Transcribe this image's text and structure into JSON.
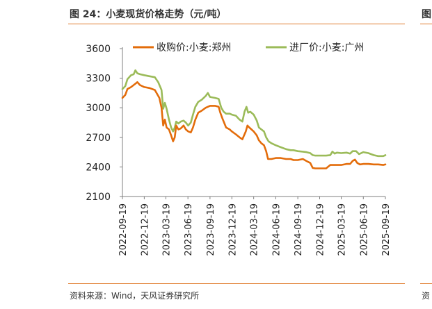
{
  "figure": {
    "title": "图 24：小麦现货价格走势（元/吨）",
    "source": "资料来源：Wind，天风证券研究所",
    "cut_title_fragment": "图",
    "cut_source_fragment": "资"
  },
  "colors": {
    "accent": "#e07a2a",
    "series1": "#e36c0a",
    "series2": "#9bbb59"
  },
  "chart_data": {
    "type": "line",
    "title": "小麦现货价格走势（元/吨）",
    "xlabel": "",
    "ylabel": "",
    "ylim": [
      2100,
      3600
    ],
    "yticks": [
      2100,
      2400,
      2700,
      3000,
      3300,
      3600
    ],
    "xlim": [
      "2022-09-19",
      "2025-09-19"
    ],
    "xticks": [
      "2022-09-19",
      "2022-12-19",
      "2023-03-19",
      "2023-06-19",
      "2023-09-19",
      "2023-12-19",
      "2024-03-19",
      "2024-06-19",
      "2024-09-19",
      "2024-12-19",
      "2025-03-19",
      "2025-06-19",
      "2025-09-19"
    ],
    "legend_position": "top",
    "series": [
      {
        "name": "收购价:小麦:郑州",
        "color": "#e36c0a",
        "points": [
          [
            "2022-09-19",
            3100
          ],
          [
            "2022-10-01",
            3130
          ],
          [
            "2022-10-10",
            3190
          ],
          [
            "2022-10-25",
            3210
          ],
          [
            "2022-11-10",
            3240
          ],
          [
            "2022-11-20",
            3260
          ],
          [
            "2022-12-01",
            3230
          ],
          [
            "2022-12-19",
            3210
          ],
          [
            "2023-01-10",
            3200
          ],
          [
            "2023-02-01",
            3180
          ],
          [
            "2023-02-20",
            3100
          ],
          [
            "2023-03-01",
            3000
          ],
          [
            "2023-03-08",
            2820
          ],
          [
            "2023-03-15",
            2880
          ],
          [
            "2023-03-22",
            2800
          ],
          [
            "2023-04-01",
            2780
          ],
          [
            "2023-04-10",
            2720
          ],
          [
            "2023-04-18",
            2660
          ],
          [
            "2023-04-25",
            2700
          ],
          [
            "2023-05-01",
            2820
          ],
          [
            "2023-05-10",
            2780
          ],
          [
            "2023-05-20",
            2790
          ],
          [
            "2023-06-01",
            2820
          ],
          [
            "2023-06-10",
            2780
          ],
          [
            "2023-06-20",
            2760
          ],
          [
            "2023-07-01",
            2750
          ],
          [
            "2023-07-10",
            2800
          ],
          [
            "2023-07-20",
            2880
          ],
          [
            "2023-08-01",
            2950
          ],
          [
            "2023-08-15",
            2970
          ],
          [
            "2023-09-01",
            3000
          ],
          [
            "2023-09-19",
            3020
          ],
          [
            "2023-10-10",
            3020
          ],
          [
            "2023-10-25",
            3010
          ],
          [
            "2023-11-01",
            2950
          ],
          [
            "2023-11-10",
            2890
          ],
          [
            "2023-11-25",
            2800
          ],
          [
            "2023-12-10",
            2780
          ],
          [
            "2023-12-19",
            2760
          ],
          [
            "2024-01-05",
            2730
          ],
          [
            "2024-01-20",
            2700
          ],
          [
            "2024-02-01",
            2680
          ],
          [
            "2024-02-15",
            2760
          ],
          [
            "2024-02-22",
            2820
          ],
          [
            "2024-03-01",
            2800
          ],
          [
            "2024-03-19",
            2760
          ],
          [
            "2024-04-01",
            2720
          ],
          [
            "2024-04-10",
            2670
          ],
          [
            "2024-04-20",
            2640
          ],
          [
            "2024-05-01",
            2620
          ],
          [
            "2024-05-10",
            2560
          ],
          [
            "2024-05-18",
            2480
          ],
          [
            "2024-06-01",
            2480
          ],
          [
            "2024-06-19",
            2490
          ],
          [
            "2024-07-10",
            2490
          ],
          [
            "2024-08-01",
            2480
          ],
          [
            "2024-08-20",
            2480
          ],
          [
            "2024-09-01",
            2470
          ],
          [
            "2024-09-19",
            2470
          ],
          [
            "2024-10-10",
            2480
          ],
          [
            "2024-10-25",
            2460
          ],
          [
            "2024-11-10",
            2440
          ],
          [
            "2024-11-20",
            2390
          ],
          [
            "2024-12-01",
            2385
          ],
          [
            "2024-12-19",
            2385
          ],
          [
            "2025-01-15",
            2385
          ],
          [
            "2025-02-01",
            2420
          ],
          [
            "2025-03-19",
            2420
          ],
          [
            "2025-04-10",
            2430
          ],
          [
            "2025-04-25",
            2430
          ],
          [
            "2025-05-05",
            2460
          ],
          [
            "2025-05-15",
            2475
          ],
          [
            "2025-05-25",
            2440
          ],
          [
            "2025-06-05",
            2425
          ],
          [
            "2025-06-19",
            2430
          ],
          [
            "2025-07-10",
            2430
          ],
          [
            "2025-08-01",
            2425
          ],
          [
            "2025-08-20",
            2425
          ],
          [
            "2025-09-10",
            2420
          ],
          [
            "2025-09-19",
            2425
          ]
        ]
      },
      {
        "name": "进厂价:小麦:广州",
        "color": "#9bbb59",
        "points": [
          [
            "2022-09-19",
            3190
          ],
          [
            "2022-10-01",
            3220
          ],
          [
            "2022-10-10",
            3290
          ],
          [
            "2022-10-25",
            3330
          ],
          [
            "2022-11-05",
            3340
          ],
          [
            "2022-11-12",
            3380
          ],
          [
            "2022-11-20",
            3350
          ],
          [
            "2022-12-01",
            3340
          ],
          [
            "2022-12-19",
            3330
          ],
          [
            "2023-01-10",
            3320
          ],
          [
            "2023-02-01",
            3310
          ],
          [
            "2023-02-15",
            3260
          ],
          [
            "2023-03-01",
            3180
          ],
          [
            "2023-03-08",
            2990
          ],
          [
            "2023-03-15",
            3050
          ],
          [
            "2023-03-22",
            2990
          ],
          [
            "2023-04-01",
            2880
          ],
          [
            "2023-04-10",
            2800
          ],
          [
            "2023-04-18",
            2760
          ],
          [
            "2023-04-25",
            2800
          ],
          [
            "2023-05-01",
            2860
          ],
          [
            "2023-05-10",
            2840
          ],
          [
            "2023-05-20",
            2860
          ],
          [
            "2023-06-01",
            2870
          ],
          [
            "2023-06-10",
            2850
          ],
          [
            "2023-06-20",
            2820
          ],
          [
            "2023-07-01",
            2850
          ],
          [
            "2023-07-10",
            2930
          ],
          [
            "2023-07-20",
            3010
          ],
          [
            "2023-08-01",
            3060
          ],
          [
            "2023-08-15",
            3080
          ],
          [
            "2023-09-01",
            3120
          ],
          [
            "2023-09-10",
            3150
          ],
          [
            "2023-09-19",
            3110
          ],
          [
            "2023-10-10",
            3100
          ],
          [
            "2023-10-25",
            3090
          ],
          [
            "2023-11-05",
            3000
          ],
          [
            "2023-11-15",
            2960
          ],
          [
            "2023-11-25",
            2940
          ],
          [
            "2023-12-10",
            2940
          ],
          [
            "2023-12-19",
            2930
          ],
          [
            "2024-01-05",
            2920
          ],
          [
            "2024-01-20",
            2880
          ],
          [
            "2024-02-01",
            2860
          ],
          [
            "2024-02-10",
            2960
          ],
          [
            "2024-02-18",
            3010
          ],
          [
            "2024-02-25",
            2950
          ],
          [
            "2024-03-05",
            2960
          ],
          [
            "2024-03-19",
            2930
          ],
          [
            "2024-04-01",
            2870
          ],
          [
            "2024-04-10",
            2800
          ],
          [
            "2024-04-20",
            2780
          ],
          [
            "2024-05-01",
            2760
          ],
          [
            "2024-05-10",
            2700
          ],
          [
            "2024-05-20",
            2660
          ],
          [
            "2024-06-01",
            2640
          ],
          [
            "2024-06-19",
            2620
          ],
          [
            "2024-07-10",
            2600
          ],
          [
            "2024-08-01",
            2580
          ],
          [
            "2024-08-20",
            2570
          ],
          [
            "2024-09-01",
            2570
          ],
          [
            "2024-09-19",
            2560
          ],
          [
            "2024-10-10",
            2555
          ],
          [
            "2024-10-25",
            2550
          ],
          [
            "2024-11-10",
            2540
          ],
          [
            "2024-11-20",
            2520
          ],
          [
            "2024-12-01",
            2515
          ],
          [
            "2024-12-19",
            2515
          ],
          [
            "2025-01-15",
            2515
          ],
          [
            "2025-02-01",
            2520
          ],
          [
            "2025-02-10",
            2555
          ],
          [
            "2025-02-20",
            2535
          ],
          [
            "2025-03-01",
            2545
          ],
          [
            "2025-03-19",
            2540
          ],
          [
            "2025-04-10",
            2545
          ],
          [
            "2025-04-25",
            2535
          ],
          [
            "2025-05-05",
            2560
          ],
          [
            "2025-05-20",
            2560
          ],
          [
            "2025-06-01",
            2530
          ],
          [
            "2025-06-19",
            2550
          ],
          [
            "2025-07-10",
            2540
          ],
          [
            "2025-08-01",
            2520
          ],
          [
            "2025-08-20",
            2510
          ],
          [
            "2025-09-10",
            2510
          ],
          [
            "2025-09-19",
            2520
          ]
        ]
      }
    ]
  }
}
